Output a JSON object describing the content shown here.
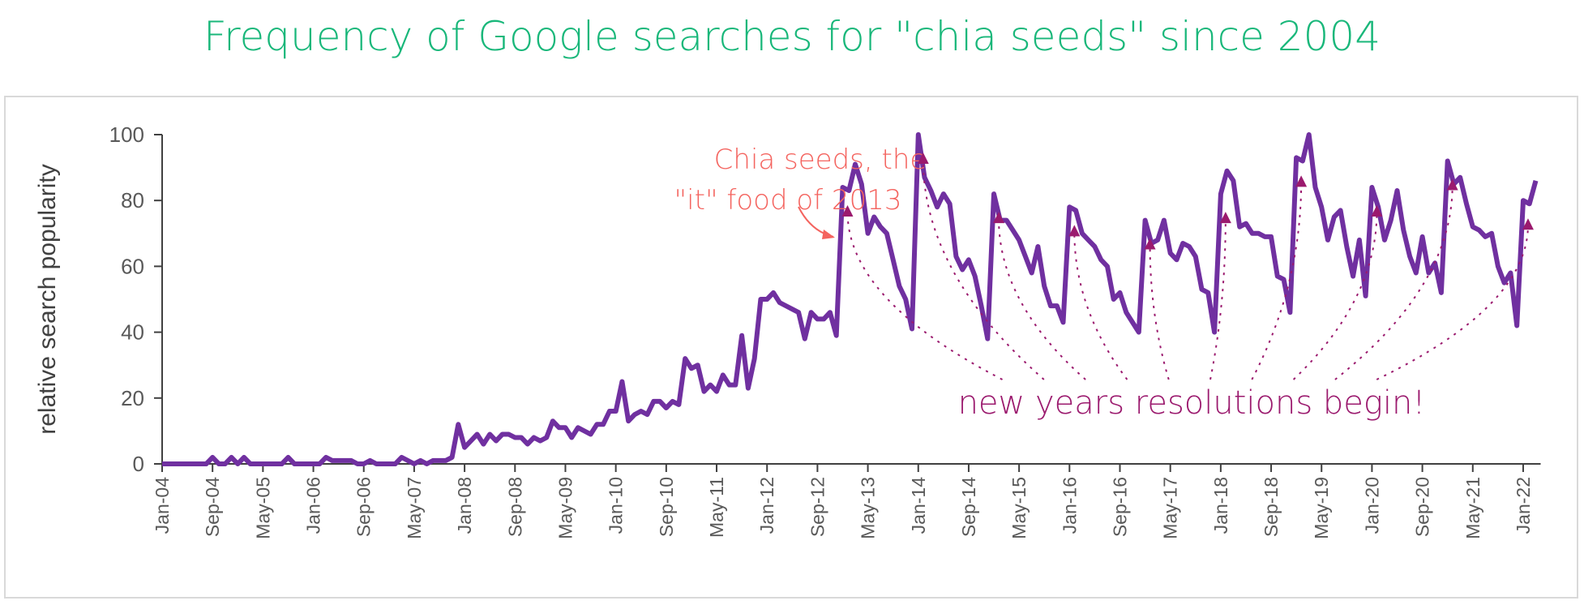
{
  "chart_data": {
    "type": "line",
    "title": "Frequency of Google searches for \"chia seeds\" since 2004",
    "y_label": "relative search popularity",
    "annotation_1": [
      "Chia seeds, the",
      "\"it\" food of 2013"
    ],
    "annotation_2": "new years resolutions begin!",
    "color": "#7030a0",
    "ylim": [
      0,
      100
    ],
    "yticks": [
      0,
      20,
      40,
      60,
      80,
      100
    ],
    "categories": [
      "Jan-04",
      null,
      null,
      null,
      null,
      null,
      null,
      null,
      "Sep-04",
      null,
      null,
      null,
      null,
      null,
      null,
      null,
      "May-05",
      null,
      null,
      null,
      null,
      null,
      null,
      null,
      "Jan-06",
      null,
      null,
      null,
      null,
      null,
      null,
      null,
      "Sep-06",
      null,
      null,
      null,
      null,
      null,
      null,
      null,
      "May-07",
      null,
      null,
      null,
      null,
      null,
      null,
      null,
      "Jan-08",
      null,
      null,
      null,
      null,
      null,
      null,
      null,
      "Sep-08",
      null,
      null,
      null,
      null,
      null,
      null,
      null,
      "May-09",
      null,
      null,
      null,
      null,
      null,
      null,
      null,
      "Jan-10",
      null,
      null,
      null,
      null,
      null,
      null,
      null,
      "Sep-10",
      null,
      null,
      null,
      null,
      null,
      null,
      null,
      "May-11",
      null,
      null,
      null,
      null,
      null,
      null,
      null,
      "Jan-12",
      null,
      null,
      null,
      null,
      null,
      null,
      null,
      "Sep-12",
      null,
      null,
      null,
      null,
      null,
      null,
      null,
      "May-13",
      null,
      null,
      null,
      null,
      null,
      null,
      null,
      "Jan-14",
      null,
      null,
      null,
      null,
      null,
      null,
      null,
      "Sep-14",
      null,
      null,
      null,
      null,
      null,
      null,
      null,
      "May-15",
      null,
      null,
      null,
      null,
      null,
      null,
      null,
      "Jan-16",
      null,
      null,
      null,
      null,
      null,
      null,
      null,
      "Sep-16",
      null,
      null,
      null,
      null,
      null,
      null,
      null,
      "May-17",
      null,
      null,
      null,
      null,
      null,
      null,
      null,
      "Jan-18",
      null,
      null,
      null,
      null,
      null,
      null,
      null,
      "Sep-18",
      null,
      null,
      null,
      null,
      null,
      null,
      null,
      "May-19",
      null,
      null,
      null,
      null,
      null,
      null,
      null,
      "Jan-20",
      null,
      null,
      null,
      null,
      null,
      null,
      null,
      "Sep-20",
      null,
      null,
      null,
      null,
      null,
      null,
      null,
      "May-21",
      null,
      null,
      null,
      null,
      null,
      null,
      null,
      "Jan-22",
      null,
      null
    ],
    "values": [
      0,
      0,
      0,
      0,
      0,
      0,
      0,
      0,
      2,
      0,
      0,
      2,
      0,
      2,
      0,
      0,
      0,
      0,
      0,
      0,
      2,
      0,
      0,
      0,
      0,
      0,
      2,
      1,
      1,
      1,
      1,
      0,
      0,
      1,
      0,
      0,
      0,
      0,
      2,
      1,
      0,
      1,
      0,
      1,
      1,
      1,
      2,
      12,
      5,
      7,
      9,
      6,
      9,
      7,
      9,
      9,
      8,
      8,
      6,
      8,
      7,
      8,
      13,
      11,
      11,
      8,
      11,
      10,
      9,
      12,
      12,
      16,
      16,
      25,
      13,
      15,
      16,
      15,
      19,
      19,
      17,
      19,
      18,
      32,
      29,
      30,
      22,
      24,
      22,
      27,
      24,
      24,
      39,
      23,
      32,
      50,
      50,
      52,
      49,
      48,
      47,
      46,
      38,
      46,
      44,
      44,
      46,
      39,
      84,
      83,
      91,
      85,
      70,
      75,
      72,
      70,
      62,
      54,
      50,
      41,
      100,
      87,
      83,
      78,
      82,
      79,
      63,
      59,
      62,
      57,
      48,
      38,
      82,
      74,
      74,
      71,
      68,
      63,
      58,
      66,
      54,
      48,
      48,
      43,
      78,
      77,
      70,
      68,
      66,
      62,
      60,
      50,
      52,
      46,
      43,
      40,
      74,
      67,
      68,
      74,
      64,
      62,
      67,
      66,
      63,
      53,
      52,
      40,
      82,
      89,
      86,
      72,
      73,
      70,
      70,
      69,
      69,
      57,
      56,
      46,
      93,
      92,
      100,
      84,
      78,
      68,
      75,
      77,
      66,
      57,
      68,
      51,
      84,
      78,
      68,
      74,
      83,
      71,
      63,
      58,
      69,
      58,
      61,
      52,
      92,
      85,
      87,
      79,
      72,
      71,
      69,
      70,
      60,
      55,
      58,
      42,
      80,
      79,
      86
    ]
  }
}
